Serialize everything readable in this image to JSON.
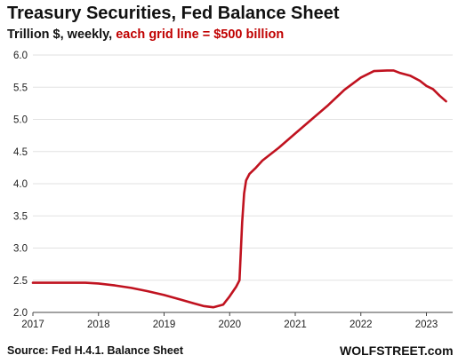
{
  "header": {
    "title": "Treasury Securities, Fed Balance Sheet",
    "subtitle_part1": "Trillion $, weekly, ",
    "subtitle_part2": "each grid line = $500 billion"
  },
  "footer": {
    "source": "Source: Fed H.4.1. Balance Sheet",
    "brand": "WOLFSTREET.com"
  },
  "colors": {
    "line": "#c0121f",
    "subtitle_accent": "#c00000",
    "grid": "#e2e2e2"
  },
  "chart_data": {
    "type": "line",
    "title": "Treasury Securities, Fed Balance Sheet",
    "ylabel": "Trillion $",
    "xlim": [
      2017.0,
      2023.4
    ],
    "ylim": [
      2.0,
      6.0
    ],
    "y_ticks": [
      "2.0",
      "2.5",
      "3.0",
      "3.5",
      "4.0",
      "4.5",
      "5.0",
      "5.5",
      "6.0"
    ],
    "x_ticks": [
      "2017",
      "2018",
      "2019",
      "2020",
      "2021",
      "2022",
      "2023"
    ],
    "grid": "horizontal",
    "legend": "none",
    "series": [
      {
        "x": [
          2017.0,
          2017.5,
          2017.8,
          2018.0,
          2018.25,
          2018.5,
          2018.75,
          2019.0,
          2019.25,
          2019.45,
          2019.6,
          2019.75,
          2019.9,
          2020.0,
          2020.1,
          2020.15,
          2020.19,
          2020.22,
          2020.25,
          2020.3,
          2020.4,
          2020.5,
          2020.75,
          2021.0,
          2021.25,
          2021.5,
          2021.75,
          2022.0,
          2022.2,
          2022.4,
          2022.5,
          2022.6,
          2022.75,
          2022.9,
          2023.0,
          2023.1,
          2023.2,
          2023.3
        ],
        "y": [
          2.46,
          2.46,
          2.46,
          2.45,
          2.42,
          2.38,
          2.33,
          2.27,
          2.2,
          2.14,
          2.1,
          2.08,
          2.12,
          2.25,
          2.4,
          2.5,
          3.4,
          3.85,
          4.05,
          4.15,
          4.25,
          4.36,
          4.56,
          4.78,
          5.0,
          5.22,
          5.46,
          5.65,
          5.75,
          5.76,
          5.76,
          5.72,
          5.68,
          5.6,
          5.52,
          5.47,
          5.37,
          5.28
        ]
      }
    ]
  }
}
